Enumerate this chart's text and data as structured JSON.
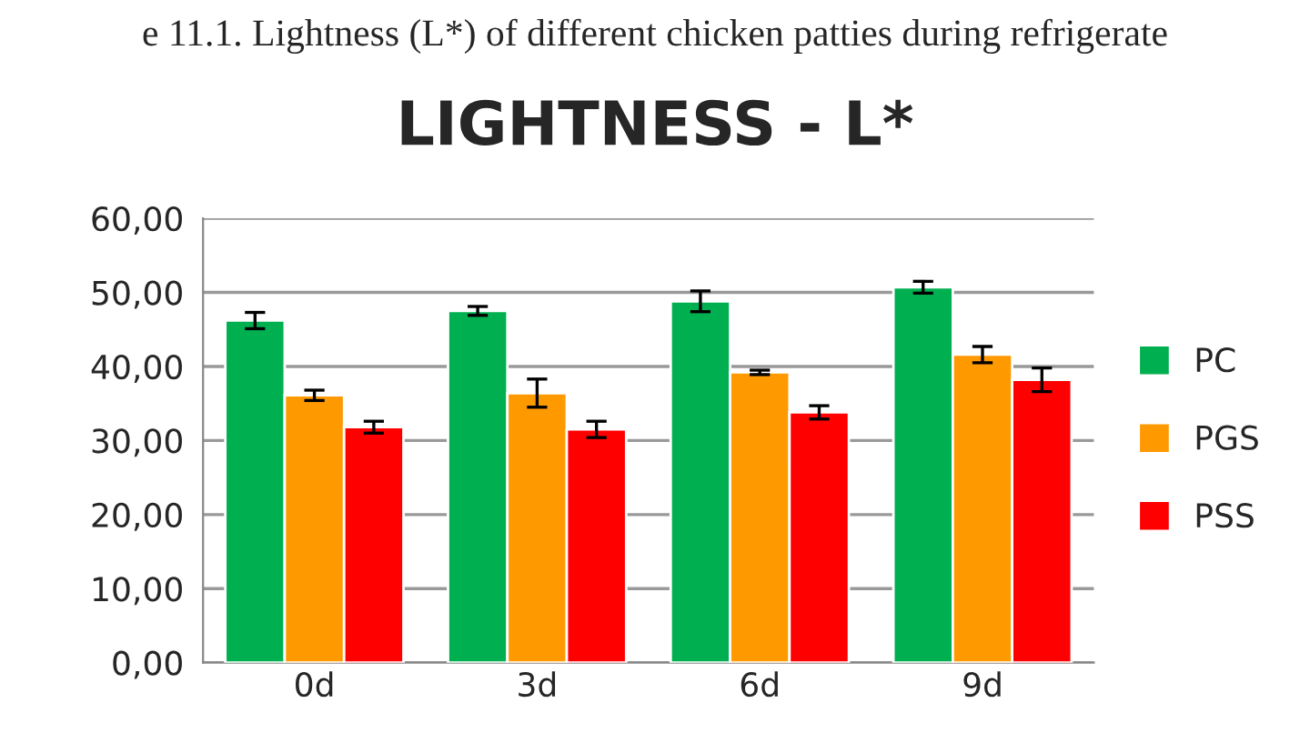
{
  "chart_data": {
    "type": "bar",
    "title": "LIGHTNESS - L*",
    "annotations": [
      "e 11.1. Lightness (L*) of different chicken patties during refrigerate"
    ],
    "categories": [
      "0d",
      "3d",
      "6d",
      "9d"
    ],
    "series": [
      {
        "name": "PC",
        "color": "#00b050",
        "values": [
          46.2,
          47.5,
          48.8,
          50.7
        ],
        "errors": [
          1.1,
          0.6,
          1.4,
          0.8
        ]
      },
      {
        "name": "PGS",
        "color": "#ff9900",
        "values": [
          36.1,
          36.4,
          39.2,
          41.6
        ],
        "errors": [
          0.7,
          1.9,
          0.3,
          1.1
        ]
      },
      {
        "name": "PSS",
        "color": "#ff0000",
        "values": [
          31.8,
          31.5,
          33.8,
          38.2
        ],
        "errors": [
          0.8,
          1.1,
          0.9,
          1.6
        ]
      }
    ],
    "ylim": [
      0,
      60
    ],
    "yticks": [
      {
        "value": 0,
        "label": "0,00"
      },
      {
        "value": 10,
        "label": "10,00"
      },
      {
        "value": 20,
        "label": "20,00"
      },
      {
        "value": 30,
        "label": "30,00"
      },
      {
        "value": 40,
        "label": "40,00"
      },
      {
        "value": 50,
        "label": "50,00"
      },
      {
        "value": 60,
        "label": "60,00"
      }
    ],
    "grid": "y",
    "legend": "right"
  }
}
